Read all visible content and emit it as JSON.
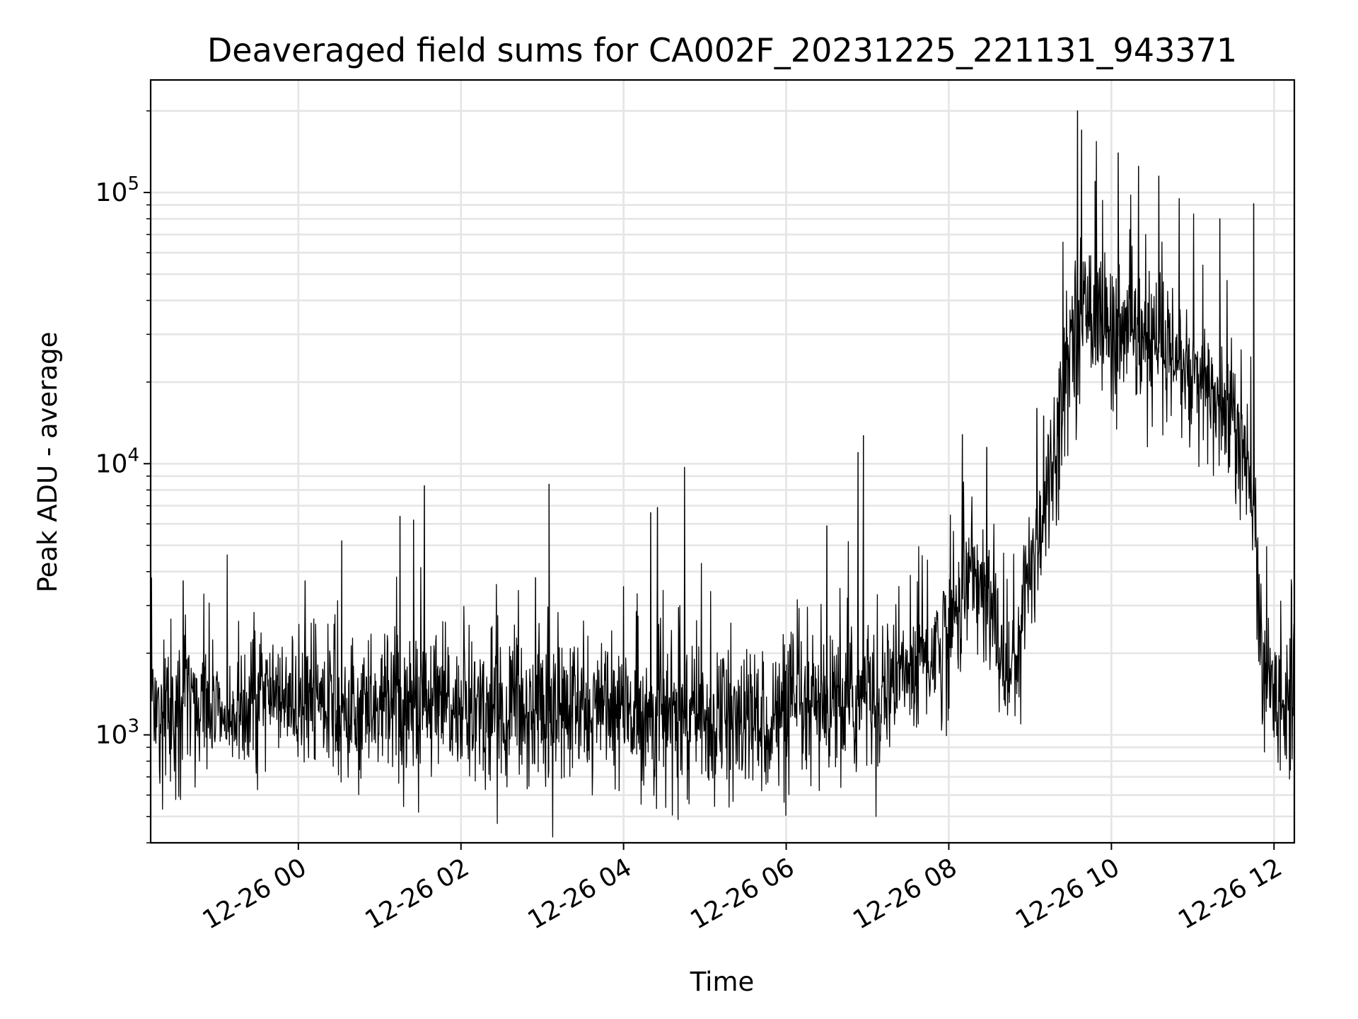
{
  "chart_data": {
    "type": "line",
    "title": "Deaveraged field sums for CA002F_20231225_221131_943371",
    "xlabel": "Time",
    "ylabel": "Peak ADU - average",
    "y_scale": "log",
    "ylim": [
      400,
      260000
    ],
    "xlim": [
      "2023-12-25 22:11",
      "2023-12-26 12:15"
    ],
    "grid": true,
    "line_color": "#000000",
    "grid_color": "#e5e5e5",
    "x_ticks": [
      {
        "t": "2023-12-26 00:00",
        "label": "12-26 00"
      },
      {
        "t": "2023-12-26 02:00",
        "label": "12-26 02"
      },
      {
        "t": "2023-12-26 04:00",
        "label": "12-26 04"
      },
      {
        "t": "2023-12-26 06:00",
        "label": "12-26 06"
      },
      {
        "t": "2023-12-26 08:00",
        "label": "12-26 08"
      },
      {
        "t": "2023-12-26 10:00",
        "label": "12-26 10"
      },
      {
        "t": "2023-12-26 12:00",
        "label": "12-26 12"
      }
    ],
    "y_ticks": [
      {
        "value": 1000,
        "base": "10",
        "exp": "3"
      },
      {
        "value": 10000,
        "base": "10",
        "exp": "4"
      },
      {
        "value": 100000,
        "base": "10",
        "exp": "5"
      }
    ],
    "series": [
      {
        "baseline_profile": [
          {
            "t": "2023-12-25 22:11",
            "y": 1300
          },
          {
            "t": "2023-12-26 00:00",
            "y": 1300
          },
          {
            "t": "2023-12-26 02:00",
            "y": 1250
          },
          {
            "t": "2023-12-26 04:00",
            "y": 1200
          },
          {
            "t": "2023-12-26 05:30",
            "y": 1100
          },
          {
            "t": "2023-12-26 06:30",
            "y": 1200
          },
          {
            "t": "2023-12-26 07:00",
            "y": 1400
          },
          {
            "t": "2023-12-26 07:30",
            "y": 1700
          },
          {
            "t": "2023-12-26 08:00",
            "y": 2300
          },
          {
            "t": "2023-12-26 08:15",
            "y": 4000
          },
          {
            "t": "2023-12-26 08:30",
            "y": 3000
          },
          {
            "t": "2023-12-26 08:45",
            "y": 1600
          },
          {
            "t": "2023-12-26 09:00",
            "y": 4000
          },
          {
            "t": "2023-12-26 09:15",
            "y": 9000
          },
          {
            "t": "2023-12-26 09:30",
            "y": 30000
          },
          {
            "t": "2023-12-26 09:45",
            "y": 40000
          },
          {
            "t": "2023-12-26 10:00",
            "y": 30000
          },
          {
            "t": "2023-12-26 10:30",
            "y": 27000
          },
          {
            "t": "2023-12-26 11:00",
            "y": 20000
          },
          {
            "t": "2023-12-26 11:30",
            "y": 15000
          },
          {
            "t": "2023-12-26 11:45",
            "y": 7000
          },
          {
            "t": "2023-12-26 11:52",
            "y": 1500
          },
          {
            "t": "2023-12-26 12:15",
            "y": 1400
          }
        ],
        "spikes": [
          {
            "t": "2023-12-25 22:35",
            "y": 3700
          },
          {
            "t": "2023-12-26 00:05",
            "y": 3700
          },
          {
            "t": "2023-12-26 00:32",
            "y": 5200
          },
          {
            "t": "2023-12-26 01:15",
            "y": 6400
          },
          {
            "t": "2023-12-26 01:25",
            "y": 6200
          },
          {
            "t": "2023-12-26 01:33",
            "y": 8300
          },
          {
            "t": "2023-12-26 02:55",
            "y": 3800
          },
          {
            "t": "2023-12-26 03:05",
            "y": 8400
          },
          {
            "t": "2023-12-26 04:20",
            "y": 6600
          },
          {
            "t": "2023-12-26 04:25",
            "y": 6900
          },
          {
            "t": "2023-12-26 04:45",
            "y": 9700
          },
          {
            "t": "2023-12-26 06:30",
            "y": 5900
          },
          {
            "t": "2023-12-26 06:53",
            "y": 11000
          },
          {
            "t": "2023-12-26 06:57",
            "y": 12700
          },
          {
            "t": "2023-12-26 08:10",
            "y": 12800
          },
          {
            "t": "2023-12-26 08:28",
            "y": 11500
          },
          {
            "t": "2023-12-26 09:05",
            "y": 16000
          },
          {
            "t": "2023-12-26 09:10",
            "y": 15000
          },
          {
            "t": "2023-12-26 09:35",
            "y": 200000
          },
          {
            "t": "2023-12-26 09:38",
            "y": 170000
          },
          {
            "t": "2023-12-26 09:48",
            "y": 110000
          },
          {
            "t": "2023-12-26 10:05",
            "y": 140000
          },
          {
            "t": "2023-12-26 10:20",
            "y": 125000
          },
          {
            "t": "2023-12-26 10:35",
            "y": 115000
          },
          {
            "t": "2023-12-26 10:50",
            "y": 95000
          },
          {
            "t": "2023-12-26 11:20",
            "y": 80000
          },
          {
            "t": "2023-12-26 11:45",
            "y": 91000
          }
        ]
      }
    ]
  }
}
